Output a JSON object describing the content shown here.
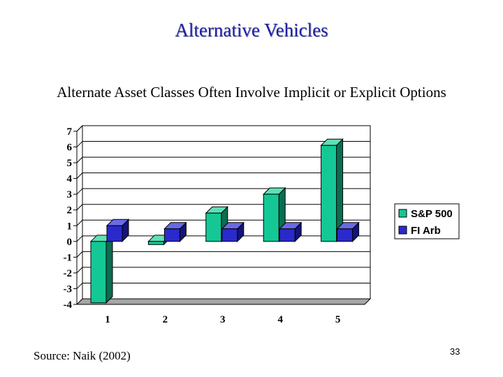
{
  "slide": {
    "title": "Alternative Vehicles",
    "subtitle": "Alternate Asset Classes Often Involve Implicit or Explicit Options",
    "source": "Source: Naik (2002)",
    "page_number": "33"
  },
  "colors": {
    "sp500_front": "#14c896",
    "sp500_top": "#5ee0b6",
    "sp500_side": "#0a6e50",
    "fiarb_front": "#2a2acc",
    "fiarb_top": "#6a6ae8",
    "fiarb_side": "#141478",
    "floor": "#a6a6a6",
    "grid": "#000000"
  },
  "chart_data": {
    "type": "bar",
    "categories": [
      "1",
      "2",
      "3",
      "4",
      "5"
    ],
    "series": [
      {
        "name": "S&P 500",
        "values": [
          -3.9,
          -0.2,
          1.8,
          3.0,
          6.1
        ]
      },
      {
        "name": "FI Arb",
        "values": [
          1.0,
          0.8,
          0.8,
          0.8,
          0.8
        ]
      }
    ],
    "yticks": [
      "7",
      "6",
      "5",
      "4",
      "3",
      "2",
      "1",
      "0",
      "-1",
      "-2",
      "-3",
      "-4"
    ],
    "ylim": [
      -4,
      7
    ],
    "grid": true,
    "legend": "right",
    "style": "3d-clustered"
  }
}
